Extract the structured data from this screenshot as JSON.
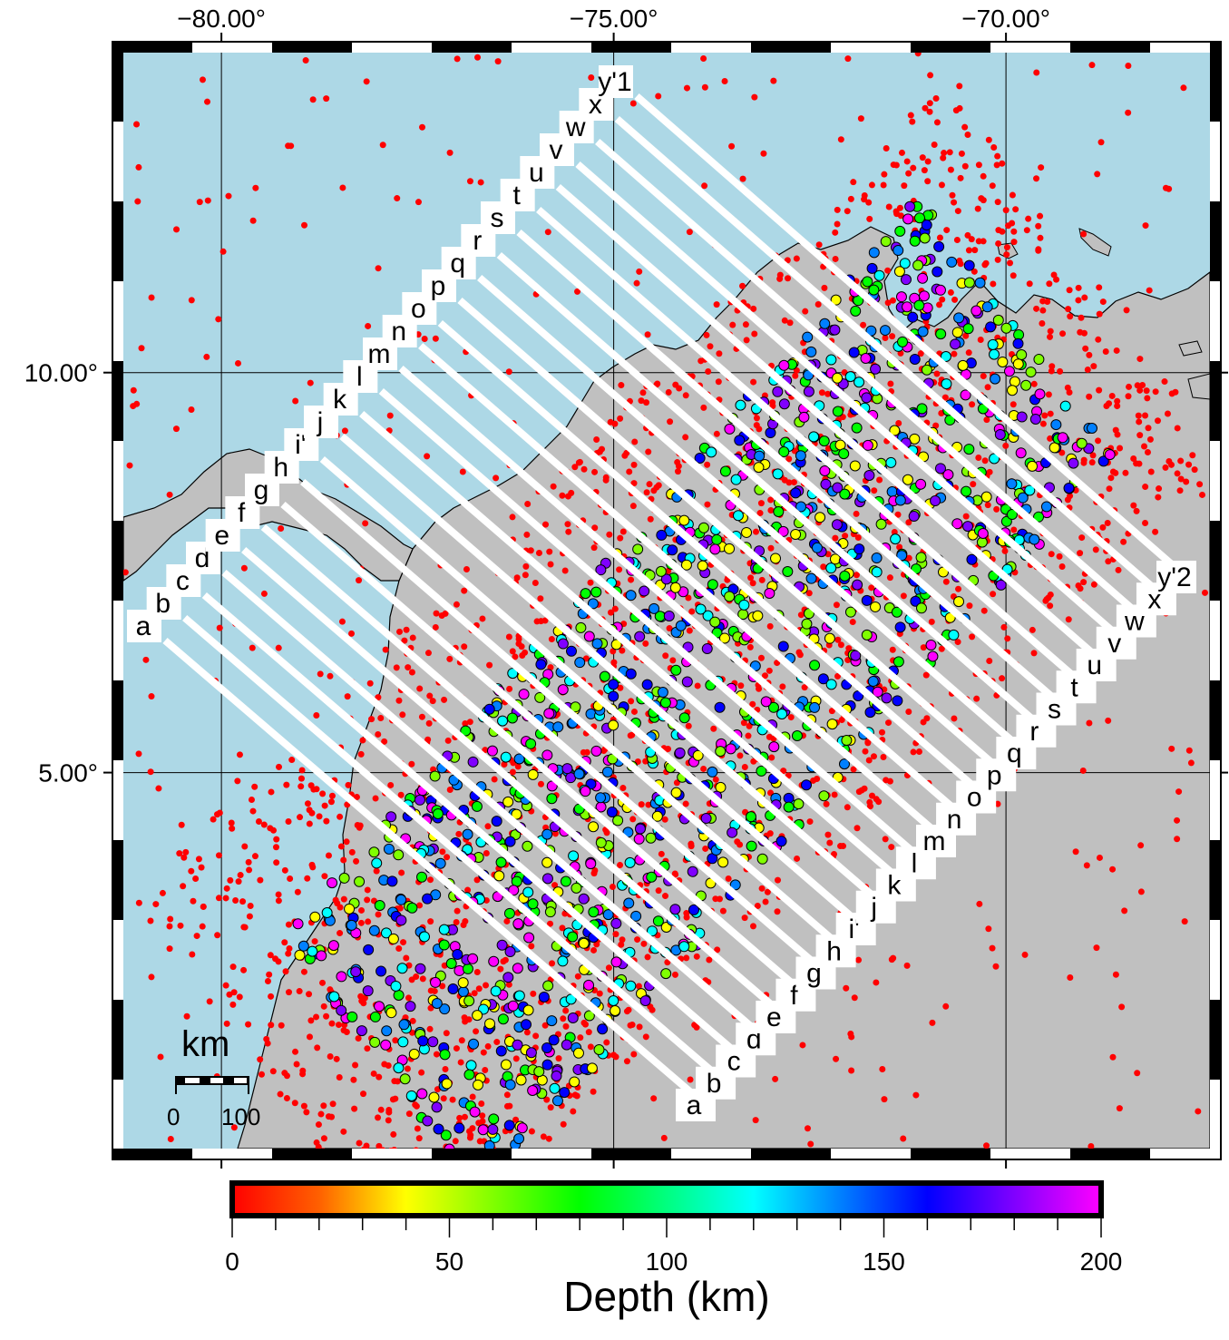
{
  "map": {
    "lon_ticks": [
      {
        "value": -80,
        "label": "−80.00°"
      },
      {
        "value": -75,
        "label": "−75.00°"
      },
      {
        "value": -70,
        "label": "−70.00°"
      }
    ],
    "lat_ticks": [
      {
        "value": 10,
        "label": "10.00°"
      },
      {
        "value": 5,
        "label": "5.00°"
      }
    ],
    "lon_range": [
      -81.25,
      -67.4
    ],
    "lat_range": [
      0.3,
      14.0
    ],
    "colors": {
      "ocean": "#add8e6",
      "land": "#c0c0c0",
      "profile_lines": "#ffffff",
      "shallow_event": "#ff0000"
    },
    "grid": true
  },
  "profiles": {
    "start_labels": [
      "a",
      "b",
      "c",
      "d",
      "e",
      "f",
      "g",
      "h",
      "i'",
      "j",
      "k",
      "l",
      "m",
      "n",
      "o",
      "p",
      "q",
      "r",
      "s",
      "t",
      "u",
      "v",
      "w",
      "x",
      "y'1"
    ],
    "end_labels": [
      "a",
      "b",
      "c",
      "d",
      "e",
      "f",
      "g",
      "h",
      "i'",
      "j",
      "k",
      "l",
      "m",
      "n",
      "o",
      "p",
      "q",
      "r",
      "s",
      "t",
      "u",
      "v",
      "w",
      "x",
      "y'2"
    ]
  },
  "scale_bar": {
    "unit": "km",
    "labels": [
      "0",
      "100"
    ]
  },
  "colorbar": {
    "title": "Depth (km)",
    "range": [
      0,
      200
    ],
    "tick_labels": [
      "0",
      "50",
      "100",
      "150",
      "200"
    ],
    "colors": [
      "#ff0000",
      "#ff8000",
      "#ffff00",
      "#80ff00",
      "#00ff00",
      "#00ffff",
      "#0080ff",
      "#0000ff",
      "#8000ff",
      "#ff00ff"
    ]
  }
}
